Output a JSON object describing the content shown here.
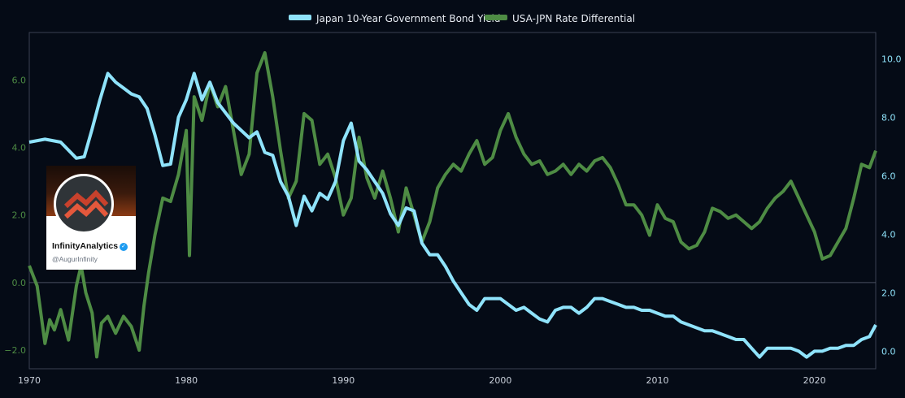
{
  "chart_data": {
    "type": "line",
    "legend": [
      {
        "label": "Japan 10-Year Government Bond Yield",
        "color": "#8fe3fb"
      },
      {
        "label": "USA-JPN Rate Differential",
        "color": "#4e8c44"
      }
    ],
    "x_ticks": [
      "1970",
      "1980",
      "1990",
      "2000",
      "2010",
      "2020"
    ],
    "y_left_ticks": [
      "6.0",
      "4.0",
      "2.0",
      "0.0",
      "−2.0"
    ],
    "y_right_ticks": [
      "10.0",
      "8.0",
      "6.0",
      "4.0",
      "2.0",
      "0.0"
    ],
    "x_range": [
      1970,
      2023.9
    ],
    "y_left_range": [
      -2.55,
      7.4
    ],
    "y_right_range": [
      -0.6,
      10.9
    ],
    "series": [
      {
        "name": "Japan 10-Year Government Bond Yield",
        "axis": "right",
        "color": "#8fe3fb",
        "x": [
          1970.0,
          1971.0,
          1972.0,
          1973.0,
          1973.5,
          1974.0,
          1974.5,
          1975.0,
          1975.5,
          1976.0,
          1976.5,
          1977.0,
          1977.5,
          1978.0,
          1978.5,
          1979.0,
          1979.5,
          1980.0,
          1980.5,
          1981.0,
          1981.5,
          1982.0,
          1983.0,
          1984.0,
          1984.5,
          1985.0,
          1985.5,
          1986.0,
          1986.5,
          1987.0,
          1987.5,
          1988.0,
          1988.5,
          1989.0,
          1989.5,
          1990.0,
          1990.5,
          1991.0,
          1991.5,
          1992.0,
          1992.5,
          1993.0,
          1993.5,
          1994.0,
          1994.5,
          1995.0,
          1995.5,
          1996.0,
          1996.5,
          1997.0,
          1997.5,
          1998.0,
          1998.5,
          1999.0,
          1999.5,
          2000.0,
          2000.5,
          2001.0,
          2001.5,
          2002.0,
          2002.5,
          2003.0,
          2003.5,
          2004.0,
          2004.5,
          2005.0,
          2005.5,
          2006.0,
          2006.5,
          2007.0,
          2007.5,
          2008.0,
          2008.5,
          2009.0,
          2009.5,
          2010.0,
          2010.5,
          2011.0,
          2011.5,
          2012.0,
          2012.5,
          2013.0,
          2013.5,
          2014.0,
          2014.5,
          2015.0,
          2015.5,
          2016.0,
          2016.5,
          2017.0,
          2017.5,
          2018.0,
          2018.5,
          2019.0,
          2019.5,
          2020.0,
          2020.5,
          2021.0,
          2021.5,
          2022.0,
          2022.5,
          2023.0,
          2023.5,
          2023.9
        ],
        "y": [
          7.15,
          7.25,
          7.15,
          6.6,
          6.65,
          7.6,
          8.6,
          9.5,
          9.2,
          9.0,
          8.8,
          8.7,
          8.3,
          7.4,
          6.35,
          6.4,
          8.0,
          8.6,
          9.5,
          8.6,
          9.2,
          8.5,
          7.8,
          7.3,
          7.5,
          6.8,
          6.7,
          5.8,
          5.3,
          4.3,
          5.3,
          4.8,
          5.4,
          5.2,
          5.8,
          7.2,
          7.8,
          6.5,
          6.2,
          5.8,
          5.4,
          4.7,
          4.3,
          4.9,
          4.8,
          3.7,
          3.3,
          3.3,
          2.9,
          2.4,
          2.0,
          1.6,
          1.4,
          1.8,
          1.8,
          1.8,
          1.6,
          1.4,
          1.5,
          1.3,
          1.1,
          1.0,
          1.4,
          1.5,
          1.5,
          1.3,
          1.5,
          1.8,
          1.8,
          1.7,
          1.6,
          1.5,
          1.5,
          1.4,
          1.4,
          1.3,
          1.2,
          1.2,
          1.0,
          0.9,
          0.8,
          0.7,
          0.7,
          0.6,
          0.5,
          0.4,
          0.4,
          0.1,
          -0.2,
          0.1,
          0.1,
          0.1,
          0.1,
          0.0,
          -0.2,
          0.0,
          0.0,
          0.1,
          0.1,
          0.2,
          0.2,
          0.4,
          0.5,
          0.9
        ]
      },
      {
        "name": "USA-JPN Rate Differential",
        "axis": "left",
        "color": "#4e8c44",
        "x": [
          1970.0,
          1970.5,
          1971.0,
          1971.3,
          1971.6,
          1972.0,
          1972.5,
          1973.0,
          1973.3,
          1973.6,
          1974.0,
          1974.3,
          1974.6,
          1975.0,
          1975.5,
          1976.0,
          1976.5,
          1977.0,
          1977.3,
          1977.6,
          1978.0,
          1978.5,
          1979.0,
          1979.5,
          1980.0,
          1980.2,
          1980.5,
          1981.0,
          1981.5,
          1982.0,
          1982.5,
          1983.0,
          1983.5,
          1984.0,
          1984.5,
          1985.0,
          1985.5,
          1986.0,
          1986.5,
          1987.0,
          1987.5,
          1988.0,
          1988.5,
          1989.0,
          1989.5,
          1990.0,
          1990.5,
          1991.0,
          1991.5,
          1992.0,
          1992.5,
          1993.0,
          1993.5,
          1994.0,
          1994.5,
          1995.0,
          1995.5,
          1996.0,
          1996.5,
          1997.0,
          1997.5,
          1998.0,
          1998.5,
          1999.0,
          1999.5,
          2000.0,
          2000.5,
          2001.0,
          2001.5,
          2002.0,
          2002.5,
          2003.0,
          2003.5,
          2004.0,
          2004.5,
          2005.0,
          2005.5,
          2006.0,
          2006.5,
          2007.0,
          2007.5,
          2008.0,
          2008.5,
          2009.0,
          2009.5,
          2010.0,
          2010.5,
          2011.0,
          2011.5,
          2012.0,
          2012.5,
          2013.0,
          2013.5,
          2014.0,
          2014.5,
          2015.0,
          2015.5,
          2016.0,
          2016.5,
          2017.0,
          2017.5,
          2018.0,
          2018.5,
          2019.0,
          2019.5,
          2020.0,
          2020.5,
          2021.0,
          2021.5,
          2022.0,
          2022.5,
          2023.0,
          2023.5,
          2023.9
        ],
        "y": [
          0.5,
          -0.1,
          -1.8,
          -1.1,
          -1.4,
          -0.8,
          -1.7,
          -0.1,
          0.5,
          -0.3,
          -0.9,
          -2.2,
          -1.2,
          -1.0,
          -1.5,
          -1.0,
          -1.3,
          -2.0,
          -0.7,
          0.3,
          1.4,
          2.5,
          2.4,
          3.2,
          4.5,
          0.8,
          5.5,
          4.8,
          5.9,
          5.2,
          5.8,
          4.5,
          3.2,
          3.8,
          6.2,
          6.8,
          5.5,
          3.9,
          2.5,
          3.0,
          5.0,
          4.8,
          3.5,
          3.8,
          3.1,
          2.0,
          2.5,
          4.3,
          3.1,
          2.5,
          3.3,
          2.5,
          1.5,
          2.8,
          2.0,
          1.2,
          1.8,
          2.8,
          3.2,
          3.5,
          3.3,
          3.8,
          4.2,
          3.5,
          3.7,
          4.5,
          5.0,
          4.3,
          3.8,
          3.5,
          3.6,
          3.2,
          3.3,
          3.5,
          3.2,
          3.5,
          3.3,
          3.6,
          3.7,
          3.4,
          2.9,
          2.3,
          2.3,
          2.0,
          1.4,
          2.3,
          1.9,
          1.8,
          1.2,
          1.0,
          1.1,
          1.5,
          2.2,
          2.1,
          1.9,
          2.0,
          1.8,
          1.6,
          1.8,
          2.2,
          2.5,
          2.7,
          3.0,
          2.5,
          2.0,
          1.5,
          0.7,
          0.8,
          1.2,
          1.6,
          2.5,
          3.5,
          3.4,
          3.9
        ]
      }
    ]
  },
  "logo": {
    "name": "InfinityAnalytics",
    "handle": "@AugurInfinity",
    "verified_icon": "verified-check-icon"
  }
}
